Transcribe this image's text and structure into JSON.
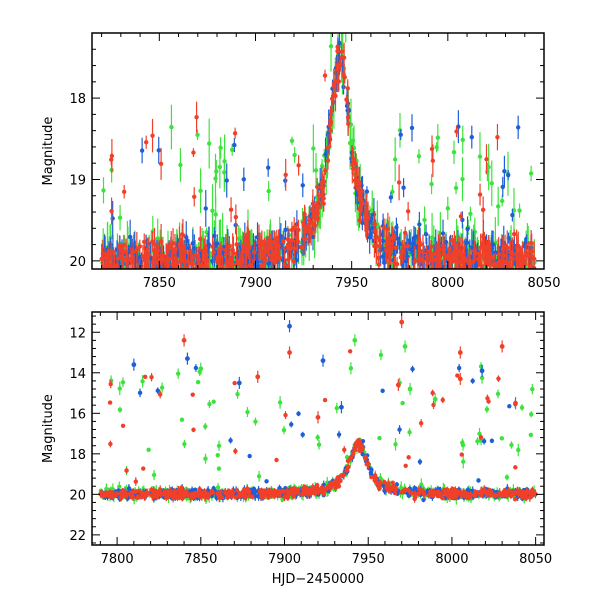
{
  "chart_data": [
    {
      "type": "scatter",
      "panel": "top",
      "title": "",
      "xlabel": "",
      "ylabel": "Magnitude",
      "xlim": [
        7815,
        8050
      ],
      "ylim": [
        20.1,
        17.2
      ],
      "y_inverted": true,
      "x_ticks": [
        7850,
        7900,
        7950,
        8000,
        8050
      ],
      "y_ticks": [
        18,
        19,
        20
      ],
      "series": [
        {
          "color": "#1e5fd8",
          "marker": "point-with-errorbar"
        },
        {
          "color": "#3de33d",
          "marker": "point-with-errorbar"
        },
        {
          "color": "#f0402a",
          "marker": "point-with-errorbar"
        }
      ],
      "baseline_magnitude": 20.0,
      "peak": {
        "x": 7944,
        "y": 17.5
      }
    },
    {
      "type": "scatter",
      "panel": "bottom",
      "title": "",
      "xlabel": "HJD−2450000",
      "ylabel": "Magnitude",
      "xlim": [
        7785,
        8055
      ],
      "ylim": [
        22.5,
        11.0
      ],
      "y_inverted": true,
      "x_ticks": [
        7800,
        7850,
        7900,
        7950,
        8000,
        8050
      ],
      "y_ticks": [
        12,
        14,
        16,
        18,
        20,
        22
      ],
      "series": [
        {
          "color": "#1e5fd8",
          "marker": "point-with-errorbar"
        },
        {
          "color": "#3de33d",
          "marker": "point-with-errorbar"
        },
        {
          "color": "#f0402a",
          "marker": "point-with-errorbar"
        }
      ],
      "baseline_magnitude": 20.0,
      "peak": {
        "x": 7944,
        "y": 17.5
      },
      "outliers": [
        {
          "color": "#1e5fd8",
          "x": 7810,
          "y": 13.6
        },
        {
          "color": "#1e5fd8",
          "x": 7842,
          "y": 13.3
        },
        {
          "color": "#1e5fd8",
          "x": 7873,
          "y": 14.5
        },
        {
          "color": "#1e5fd8",
          "x": 7903,
          "y": 11.7
        },
        {
          "color": "#1e5fd8",
          "x": 7923,
          "y": 13.4
        },
        {
          "color": "#1e5fd8",
          "x": 7934,
          "y": 15.7
        },
        {
          "color": "#1e5fd8",
          "x": 8018,
          "y": 13.9
        },
        {
          "color": "#f0402a",
          "x": 7840,
          "y": 12.4
        },
        {
          "color": "#f0402a",
          "x": 7884,
          "y": 14.2
        },
        {
          "color": "#f0402a",
          "x": 7903,
          "y": 13.0
        },
        {
          "color": "#f0402a",
          "x": 7920,
          "y": 16.2
        },
        {
          "color": "#f0402a",
          "x": 7970,
          "y": 11.5
        },
        {
          "color": "#f0402a",
          "x": 7968,
          "y": 14.6
        },
        {
          "color": "#f0402a",
          "x": 8005,
          "y": 13.0
        },
        {
          "color": "#f0402a",
          "x": 8005,
          "y": 14.3
        },
        {
          "color": "#f0402a",
          "x": 8030,
          "y": 12.7
        },
        {
          "color": "#f0402a",
          "x": 8038,
          "y": 15.5
        },
        {
          "color": "#3de33d",
          "x": 7850,
          "y": 13.8
        },
        {
          "color": "#3de33d",
          "x": 7942,
          "y": 12.4
        },
        {
          "color": "#3de33d",
          "x": 7972,
          "y": 12.7
        },
        {
          "color": "#3de33d",
          "x": 7975,
          "y": 14.8
        },
        {
          "color": "#3de33d",
          "x": 7990,
          "y": 15.3
        }
      ]
    }
  ]
}
